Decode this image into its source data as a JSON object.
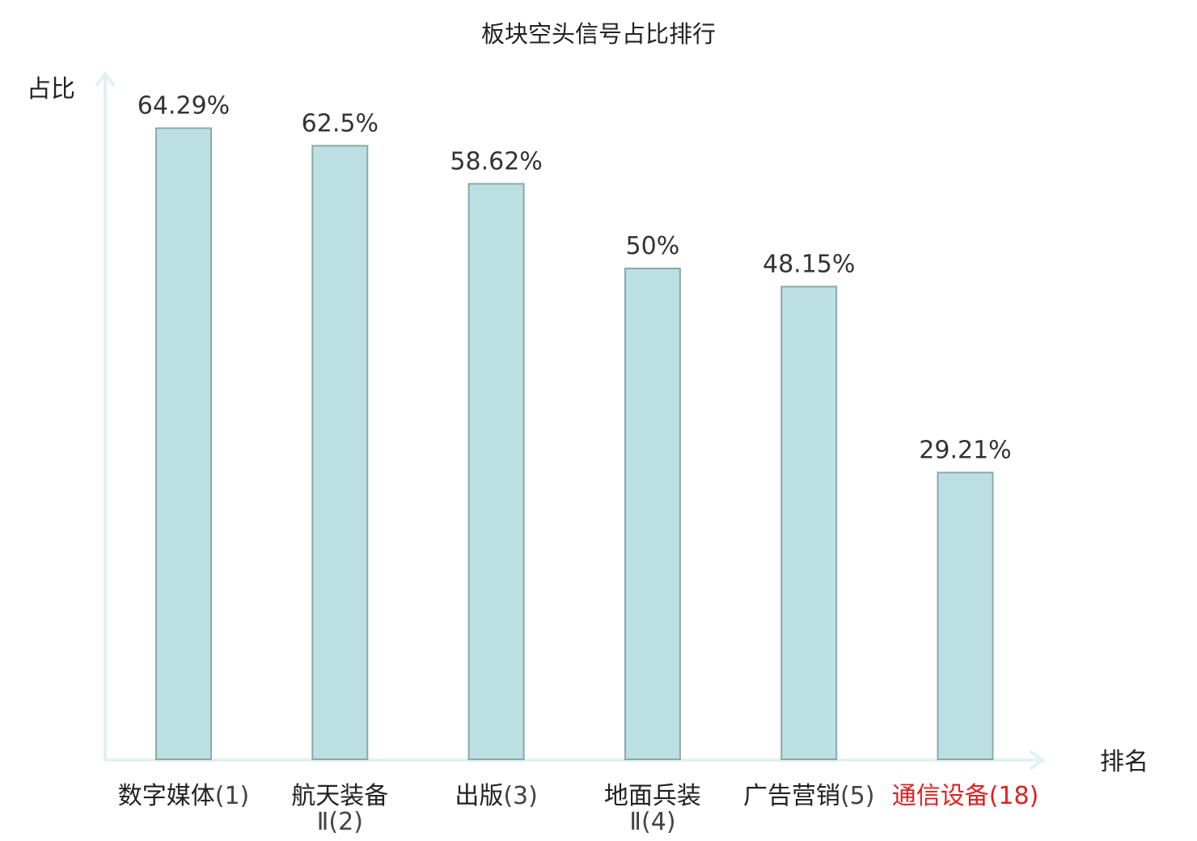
{
  "chart_data": {
    "type": "bar",
    "title": "板块空头信号占比排行",
    "ylabel": "占比",
    "xlabel": "排名",
    "ylim": [
      0,
      70
    ],
    "grid": false,
    "legend": "none",
    "colors": {
      "bar_fill": "#bce0e2",
      "bar_stroke": "#8aa8aa",
      "axis": "#e0f2f0",
      "highlight": "#e02020"
    },
    "categories": [
      {
        "name": "数字媒体",
        "rank": "(1)",
        "highlight": false
      },
      {
        "name": "航天装备",
        "sub": "Ⅱ",
        "rank": "(2)",
        "highlight": false
      },
      {
        "name": "出版",
        "rank": "(3)",
        "highlight": false
      },
      {
        "name": "地面兵装",
        "sub": "Ⅱ",
        "rank": "(4)",
        "highlight": false
      },
      {
        "name": "广告营销",
        "rank": "(5)",
        "highlight": false
      },
      {
        "name": "通信设备",
        "rank": "(18)",
        "highlight": true
      }
    ],
    "values": [
      64.29,
      62.5,
      58.62,
      50,
      48.15,
      29.21
    ],
    "value_labels": [
      "64.29%",
      "62.5%",
      "58.62%",
      "50%",
      "48.15%",
      "29.21%"
    ]
  }
}
